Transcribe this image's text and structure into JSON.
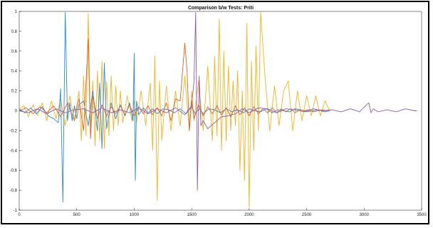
{
  "chart_data": {
    "type": "line",
    "title": "Comparison b/w Tests: Priti",
    "xlabel": "",
    "ylabel": "",
    "xlim": [
      0,
      3500
    ],
    "ylim": [
      -1,
      1
    ],
    "xticks": [
      0,
      500,
      1000,
      1500,
      2000,
      2500,
      3000,
      3500
    ],
    "yticks": [
      -1,
      -0.8,
      -0.6,
      -0.4,
      -0.2,
      0,
      0.2,
      0.4,
      0.6,
      0.8,
      1
    ],
    "grid": false,
    "legend": "none",
    "series": [
      {
        "color": "#f0b323",
        "x": [
          0,
          40,
          80,
          120,
          160,
          200,
          240,
          280,
          320,
          360,
          400,
          440,
          480,
          520,
          540,
          560,
          580,
          600,
          620,
          640,
          660,
          680,
          700,
          720,
          740,
          760,
          780,
          800,
          820,
          840,
          860,
          880,
          900,
          940,
          980,
          1000,
          1020,
          1060,
          1100,
          1140,
          1160,
          1180,
          1200,
          1220,
          1240,
          1280,
          1320,
          1360,
          1400,
          1440,
          1480,
          1500,
          1520,
          1560,
          1600,
          1640,
          1680,
          1700,
          1720,
          1740,
          1760,
          1780,
          1800,
          1820,
          1840,
          1860,
          1880,
          1900,
          1920,
          1940,
          1960,
          1980,
          2000,
          2020,
          2040,
          2060,
          2080,
          2100,
          2140,
          2180,
          2220,
          2260,
          2300,
          2340,
          2380,
          2420,
          2460,
          2500,
          2540,
          2580,
          2620,
          2660,
          2700
        ],
        "y": [
          0.02,
          0.05,
          -0.06,
          0.06,
          -0.05,
          0.08,
          -0.1,
          0.1,
          -0.08,
          0.12,
          -0.15,
          0.15,
          -0.1,
          0.2,
          -0.3,
          0.35,
          -0.25,
          0.98,
          -0.2,
          0.3,
          -0.35,
          0.4,
          -0.3,
          0.5,
          -0.38,
          0.3,
          -0.25,
          0.35,
          -0.2,
          0.25,
          -0.15,
          0.2,
          -0.12,
          0.15,
          -0.1,
          0.1,
          -0.12,
          0.2,
          -0.15,
          0.28,
          -0.4,
          0.55,
          -0.9,
          0.3,
          -0.3,
          0.25,
          -0.2,
          0.2,
          -0.15,
          0.35,
          -0.2,
          0.2,
          -0.1,
          0.3,
          -0.2,
          0.45,
          -0.3,
          0.55,
          -0.25,
          0.92,
          -0.4,
          0.6,
          -0.3,
          0.45,
          -0.2,
          0.3,
          -0.15,
          0.4,
          -0.6,
          0.2,
          -0.7,
          0.88,
          -0.97,
          0.5,
          -0.4,
          0.65,
          -0.2,
          0.99,
          0.3,
          -0.2,
          0.25,
          -0.15,
          0.2,
          0.3,
          -0.2,
          0.2,
          -0.1,
          0.15,
          -0.05,
          0.15,
          -0.05,
          0.1,
          0.0
        ]
      },
      {
        "color": "#2a8bd0",
        "x": [
          0,
          50,
          100,
          150,
          200,
          250,
          300,
          340,
          360,
          380,
          400,
          420,
          440,
          460,
          480,
          500,
          520,
          560,
          600,
          640,
          680,
          700,
          720,
          740,
          760,
          800,
          840,
          880,
          920,
          960,
          990,
          1000,
          1010,
          1020,
          1040,
          1080,
          1120,
          1160,
          1200,
          1250,
          1300,
          1350,
          1400,
          1450,
          1500,
          1530,
          1550,
          1570,
          1600,
          1650,
          1700,
          1750,
          1800,
          1850,
          1900,
          1950,
          2000,
          2050,
          2100,
          2150,
          2200,
          2250,
          2300,
          2350,
          2400,
          2450,
          2500,
          2550,
          2600,
          2650,
          2700
        ],
        "y": [
          0.02,
          -0.02,
          0.03,
          -0.03,
          0.04,
          -0.05,
          -0.08,
          -0.12,
          0.22,
          -0.92,
          0.99,
          -0.1,
          0.08,
          -0.1,
          0.05,
          -0.08,
          0.06,
          0.1,
          -0.15,
          0.2,
          -0.2,
          0.28,
          -0.38,
          0.48,
          -0.18,
          0.08,
          -0.08,
          0.06,
          -0.05,
          0.08,
          -0.1,
          0.58,
          -0.7,
          0.1,
          -0.04,
          0.03,
          -0.02,
          0.02,
          -0.03,
          0.02,
          0.01,
          -0.02,
          0.02,
          -0.03,
          0.04,
          -0.03,
          0.0,
          0.02,
          -0.03,
          0.02,
          0.01,
          -0.02,
          0.02,
          -0.01,
          0.01,
          -0.02,
          0.02,
          0.0,
          -0.01,
          0.02,
          -0.02,
          0.01,
          0.0,
          -0.01,
          0.02,
          0.01,
          -0.01,
          0.0,
          0.01,
          -0.01,
          0.0
        ]
      },
      {
        "color": "#d9622b",
        "x": [
          0,
          60,
          120,
          180,
          240,
          300,
          360,
          420,
          480,
          520,
          560,
          580,
          600,
          620,
          640,
          680,
          720,
          760,
          800,
          840,
          880,
          920,
          960,
          1000,
          1040,
          1080,
          1120,
          1160,
          1200,
          1240,
          1280,
          1320,
          1360,
          1400,
          1440,
          1460,
          1480,
          1500,
          1520,
          1560,
          1600,
          1640,
          1680,
          1720,
          1760,
          1800,
          1840,
          1880,
          1920,
          1960,
          2000,
          2040,
          2080,
          2120,
          2160,
          2200,
          2240,
          2280,
          2320,
          2360,
          2400,
          2440,
          2480,
          2520,
          2560,
          2600,
          2640,
          2680,
          2700
        ],
        "y": [
          0.0,
          0.03,
          -0.03,
          0.04,
          -0.02,
          0.05,
          -0.06,
          0.08,
          -0.1,
          0.12,
          -0.2,
          0.25,
          0.72,
          -0.28,
          0.15,
          -0.08,
          0.06,
          -0.05,
          0.04,
          -0.03,
          0.05,
          -0.04,
          0.06,
          -0.05,
          0.04,
          -0.03,
          0.05,
          -0.04,
          0.03,
          -0.05,
          0.08,
          -0.1,
          0.12,
          0.1,
          0.68,
          0.4,
          -0.2,
          0.1,
          -0.08,
          0.06,
          -0.05,
          0.04,
          -0.03,
          0.05,
          -0.04,
          0.03,
          -0.06,
          0.05,
          -0.04,
          0.03,
          -0.05,
          0.04,
          -0.03,
          0.02,
          -0.02,
          0.03,
          -0.02,
          0.02,
          -0.01,
          0.02,
          -0.02,
          0.01,
          0.0,
          0.01,
          -0.01,
          0.0,
          0.01,
          0.0,
          0.0
        ]
      },
      {
        "color": "#8e5cae",
        "x": [
          0,
          80,
          160,
          240,
          320,
          400,
          480,
          560,
          640,
          720,
          800,
          880,
          960,
          1040,
          1120,
          1200,
          1280,
          1360,
          1440,
          1500,
          1520,
          1535,
          1550,
          1565,
          1580,
          1600,
          1640,
          1700,
          1760,
          1820,
          1880,
          1940,
          2000,
          2080,
          2160,
          2240,
          2320,
          2400,
          2480,
          2560,
          2640,
          2720,
          2800,
          2880,
          2960,
          3040,
          3060,
          3080,
          3120,
          3200,
          3280,
          3360,
          3440,
          3460
        ],
        "y": [
          0.0,
          -0.02,
          0.02,
          -0.03,
          0.02,
          -0.02,
          0.01,
          0.02,
          -0.02,
          0.03,
          -0.02,
          0.01,
          -0.02,
          0.03,
          -0.03,
          0.02,
          -0.02,
          0.03,
          -0.04,
          0.05,
          0.3,
          0.99,
          -0.8,
          0.35,
          -0.15,
          -0.1,
          -0.18,
          -0.12,
          -0.06,
          -0.05,
          -0.03,
          0.02,
          -0.02,
          0.03,
          0.02,
          -0.02,
          0.02,
          0.01,
          -0.01,
          0.02,
          0.0,
          0.01,
          -0.01,
          0.02,
          -0.01,
          0.08,
          -0.02,
          0.02,
          -0.01,
          0.01,
          -0.01,
          0.02,
          0.0,
          0.0
        ]
      }
    ]
  }
}
